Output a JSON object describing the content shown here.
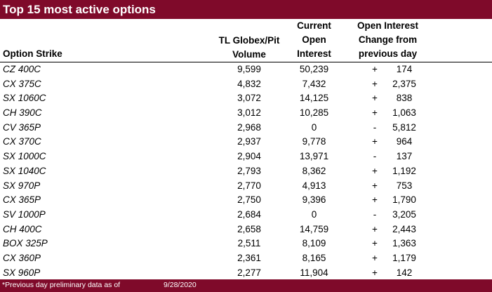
{
  "title": "Top 15 most active options",
  "headers": {
    "strike": "Option Strike",
    "volume": [
      "TL Globex/Pit",
      "Volume"
    ],
    "open_interest": [
      "Current",
      "Open",
      "Interest"
    ],
    "change": [
      "Open Interest",
      "Change from",
      "previous day"
    ]
  },
  "rows": [
    {
      "strike": "CZ 400C",
      "volume": "9,599",
      "oi": "50,239",
      "sign": "+",
      "change": "174"
    },
    {
      "strike": "CX 375C",
      "volume": "4,832",
      "oi": "7,432",
      "sign": "+",
      "change": "2,375"
    },
    {
      "strike": "SX 1060C",
      "volume": "3,072",
      "oi": "14,125",
      "sign": "+",
      "change": "838"
    },
    {
      "strike": "CH 390C",
      "volume": "3,012",
      "oi": "10,285",
      "sign": "+",
      "change": "1,063"
    },
    {
      "strike": "CV 365P",
      "volume": "2,968",
      "oi": "0",
      "sign": "-",
      "change": "5,812"
    },
    {
      "strike": "CX 370C",
      "volume": "2,937",
      "oi": "9,778",
      "sign": "+",
      "change": "964"
    },
    {
      "strike": "SX 1000C",
      "volume": "2,904",
      "oi": "13,971",
      "sign": "-",
      "change": "137"
    },
    {
      "strike": "SX 1040C",
      "volume": "2,793",
      "oi": "8,362",
      "sign": "+",
      "change": "1,192"
    },
    {
      "strike": "SX 970P",
      "volume": "2,770",
      "oi": "4,913",
      "sign": "+",
      "change": "753"
    },
    {
      "strike": "CX 365P",
      "volume": "2,750",
      "oi": "9,396",
      "sign": "+",
      "change": "1,790"
    },
    {
      "strike": "SV 1000P",
      "volume": "2,684",
      "oi": "0",
      "sign": "-",
      "change": "3,205"
    },
    {
      "strike": "CH 400C",
      "volume": "2,658",
      "oi": "14,759",
      "sign": "+",
      "change": "2,443"
    },
    {
      "strike": "BOX 325P",
      "volume": "2,511",
      "oi": "8,109",
      "sign": "+",
      "change": "1,363"
    },
    {
      "strike": "CX 360P",
      "volume": "2,361",
      "oi": "8,165",
      "sign": "+",
      "change": "1,179"
    },
    {
      "strike": "SX 960P",
      "volume": "2,277",
      "oi": "11,904",
      "sign": "+",
      "change": "142"
    }
  ],
  "footer": {
    "note": "*Previous day preliminary data as of",
    "date": "9/28/2020"
  },
  "colors": {
    "brand": "#7f0a2a"
  }
}
